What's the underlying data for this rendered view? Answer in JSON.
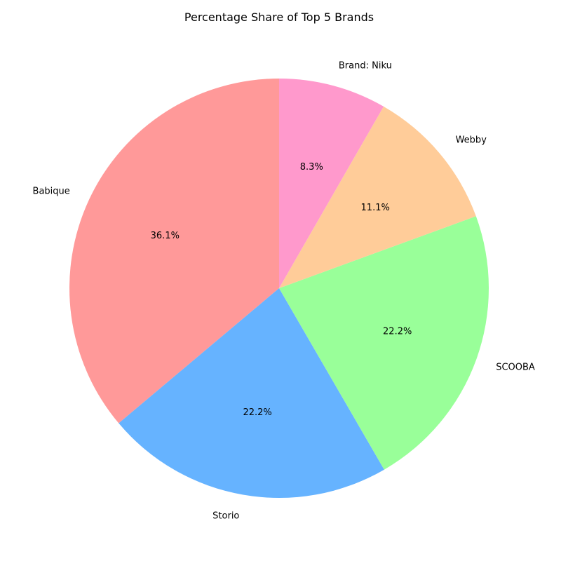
{
  "chart_data": {
    "type": "pie",
    "title": "Percentage Share of Top 5 Brands",
    "categories": [
      "Babique",
      "Storio",
      "SCOOBA",
      "Webby",
      "Brand: Niku"
    ],
    "values": [
      36.1,
      22.2,
      22.2,
      11.1,
      8.3
    ],
    "value_labels": [
      "36.1%",
      "22.2%",
      "22.2%",
      "11.1%",
      "8.3%"
    ],
    "colors": [
      "#ff9999",
      "#66b3ff",
      "#99ff99",
      "#ffcc99",
      "#ff99cc"
    ],
    "start_angle_deg": 90,
    "direction": "counterclockwise",
    "legend": "none"
  }
}
